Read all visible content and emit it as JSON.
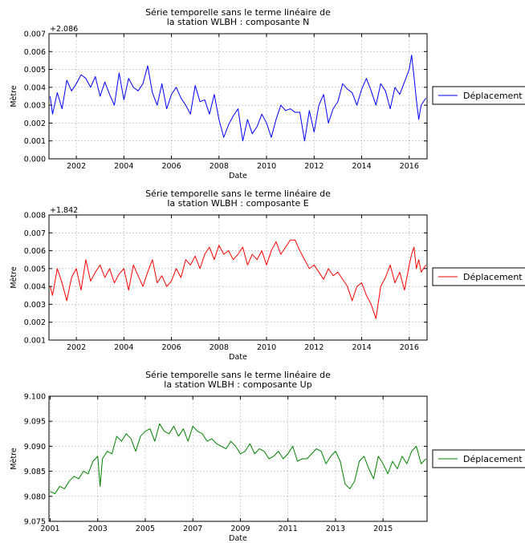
{
  "chart_data": [
    {
      "type": "line",
      "title_lines": [
        "Série temporelle sans le terme linéaire de",
        "la station WLBH : composante N"
      ],
      "xlabel": "Date",
      "ylabel": "Mètre",
      "offset_label": "+2.086",
      "x_unit": "decimal year",
      "xlim": [
        2000.85,
        2016.75
      ],
      "ylim": [
        0.0,
        0.007
      ],
      "xticks": [
        2002,
        2004,
        2006,
        2008,
        2010,
        2012,
        2014,
        2016
      ],
      "xtick_labels": [
        "2002",
        "2004",
        "2006",
        "2008",
        "2010",
        "2012",
        "2014",
        "2016"
      ],
      "yticks": [
        0.0,
        0.001,
        0.002,
        0.003,
        0.004,
        0.005,
        0.006,
        0.007
      ],
      "ytick_labels": [
        "0.000",
        "0.001",
        "0.002",
        "0.003",
        "0.004",
        "0.005",
        "0.006",
        "0.007"
      ],
      "grid": true,
      "legend_position": "right",
      "series": [
        {
          "name": "Déplacement",
          "color": "#0000ff",
          "x": [
            2000.9,
            2001.0,
            2001.2,
            2001.4,
            2001.6,
            2001.8,
            2002.0,
            2002.2,
            2002.4,
            2002.6,
            2002.8,
            2003.0,
            2003.2,
            2003.4,
            2003.6,
            2003.8,
            2004.0,
            2004.2,
            2004.4,
            2004.6,
            2004.8,
            2005.0,
            2005.2,
            2005.4,
            2005.6,
            2005.8,
            2006.0,
            2006.2,
            2006.4,
            2006.6,
            2006.8,
            2007.0,
            2007.2,
            2007.4,
            2007.6,
            2007.8,
            2008.0,
            2008.2,
            2008.4,
            2008.6,
            2008.8,
            2009.0,
            2009.2,
            2009.4,
            2009.6,
            2009.8,
            2010.0,
            2010.2,
            2010.4,
            2010.6,
            2010.8,
            2011.0,
            2011.2,
            2011.4,
            2011.6,
            2011.8,
            2012.0,
            2012.2,
            2012.4,
            2012.6,
            2012.8,
            2013.0,
            2013.2,
            2013.4,
            2013.6,
            2013.8,
            2014.0,
            2014.2,
            2014.4,
            2014.6,
            2014.8,
            2015.0,
            2015.2,
            2015.4,
            2015.6,
            2015.8,
            2016.0,
            2016.1,
            2016.2,
            2016.3,
            2016.4,
            2016.5,
            2016.7
          ],
          "y": [
            0.0035,
            0.0025,
            0.0037,
            0.0028,
            0.0044,
            0.0038,
            0.0042,
            0.0047,
            0.0045,
            0.004,
            0.0046,
            0.0035,
            0.0043,
            0.0036,
            0.003,
            0.0048,
            0.0033,
            0.0045,
            0.004,
            0.0038,
            0.0042,
            0.0052,
            0.0037,
            0.003,
            0.0042,
            0.0028,
            0.0036,
            0.004,
            0.0034,
            0.003,
            0.0025,
            0.0041,
            0.0032,
            0.0033,
            0.0025,
            0.0036,
            0.0022,
            0.0012,
            0.0019,
            0.0024,
            0.0028,
            0.001,
            0.0022,
            0.0014,
            0.0018,
            0.0025,
            0.002,
            0.0012,
            0.0022,
            0.003,
            0.0027,
            0.0028,
            0.0026,
            0.0026,
            0.001,
            0.0027,
            0.0015,
            0.003,
            0.0036,
            0.002,
            0.0028,
            0.0032,
            0.0042,
            0.0039,
            0.0037,
            0.003,
            0.0039,
            0.0045,
            0.0038,
            0.003,
            0.0042,
            0.0038,
            0.0028,
            0.004,
            0.0036,
            0.0043,
            0.005,
            0.0058,
            0.0046,
            0.0033,
            0.0022,
            0.003,
            0.0034
          ]
        }
      ]
    },
    {
      "type": "line",
      "title_lines": [
        "Série temporelle sans le terme linéaire de",
        "la station WLBH : composante E"
      ],
      "xlabel": "Date",
      "ylabel": "Mètre",
      "offset_label": "+1.842",
      "x_unit": "decimal year",
      "xlim": [
        2000.85,
        2016.75
      ],
      "ylim": [
        0.001,
        0.008
      ],
      "xticks": [
        2002,
        2004,
        2006,
        2008,
        2010,
        2012,
        2014,
        2016
      ],
      "xtick_labels": [
        "2002",
        "2004",
        "2006",
        "2008",
        "2010",
        "2012",
        "2014",
        "2016"
      ],
      "yticks": [
        0.001,
        0.002,
        0.003,
        0.004,
        0.005,
        0.006,
        0.007,
        0.008
      ],
      "ytick_labels": [
        "0.001",
        "0.002",
        "0.003",
        "0.004",
        "0.005",
        "0.006",
        "0.007",
        "0.008"
      ],
      "grid": true,
      "legend_position": "right",
      "series": [
        {
          "name": "Déplacement",
          "color": "#ff0000",
          "x": [
            2000.9,
            2001.0,
            2001.2,
            2001.4,
            2001.6,
            2001.8,
            2002.0,
            2002.2,
            2002.4,
            2002.6,
            2002.8,
            2003.0,
            2003.2,
            2003.4,
            2003.6,
            2003.8,
            2004.0,
            2004.2,
            2004.4,
            2004.6,
            2004.8,
            2005.0,
            2005.2,
            2005.4,
            2005.6,
            2005.8,
            2006.0,
            2006.2,
            2006.4,
            2006.6,
            2006.8,
            2007.0,
            2007.2,
            2007.4,
            2007.6,
            2007.8,
            2008.0,
            2008.2,
            2008.4,
            2008.6,
            2008.8,
            2009.0,
            2009.2,
            2009.4,
            2009.6,
            2009.8,
            2010.0,
            2010.2,
            2010.4,
            2010.6,
            2010.8,
            2011.0,
            2011.2,
            2011.4,
            2011.6,
            2011.8,
            2012.0,
            2012.2,
            2012.4,
            2012.6,
            2012.8,
            2013.0,
            2013.2,
            2013.4,
            2013.6,
            2013.8,
            2014.0,
            2014.2,
            2014.4,
            2014.6,
            2014.8,
            2015.0,
            2015.2,
            2015.4,
            2015.6,
            2015.8,
            2016.0,
            2016.1,
            2016.2,
            2016.3,
            2016.4,
            2016.5,
            2016.7
          ],
          "y": [
            0.004,
            0.0035,
            0.005,
            0.0042,
            0.0032,
            0.0045,
            0.005,
            0.0038,
            0.0055,
            0.0043,
            0.0048,
            0.0052,
            0.0045,
            0.005,
            0.0042,
            0.0047,
            0.005,
            0.0038,
            0.0052,
            0.0046,
            0.004,
            0.0048,
            0.0055,
            0.0042,
            0.0046,
            0.004,
            0.0043,
            0.005,
            0.0045,
            0.0055,
            0.0052,
            0.0057,
            0.005,
            0.0058,
            0.0062,
            0.0055,
            0.0063,
            0.0058,
            0.006,
            0.0055,
            0.0058,
            0.0062,
            0.0052,
            0.0058,
            0.0055,
            0.006,
            0.0052,
            0.006,
            0.0065,
            0.0058,
            0.0062,
            0.0066,
            0.0066,
            0.006,
            0.0055,
            0.005,
            0.0052,
            0.0048,
            0.0044,
            0.005,
            0.0046,
            0.0048,
            0.0044,
            0.004,
            0.0032,
            0.004,
            0.0042,
            0.0035,
            0.003,
            0.0022,
            0.004,
            0.0045,
            0.0052,
            0.0042,
            0.0048,
            0.0038,
            0.0052,
            0.0058,
            0.0062,
            0.005,
            0.0055,
            0.0048,
            0.0052
          ]
        }
      ]
    },
    {
      "type": "line",
      "title_lines": [
        "Série temporelle sans le terme linéaire de",
        "la station WLBH : composante Up"
      ],
      "xlabel": "Date",
      "ylabel": "Mètre",
      "offset_label": "",
      "x_unit": "decimal year",
      "xlim": [
        2000.95,
        2016.85
      ],
      "ylim": [
        9.075,
        9.1
      ],
      "xticks": [
        2001,
        2003,
        2005,
        2007,
        2009,
        2011,
        2013,
        2015
      ],
      "xtick_labels": [
        "2001",
        "2003",
        "2005",
        "2007",
        "2009",
        "2011",
        "2013",
        "2015"
      ],
      "yticks": [
        9.075,
        9.08,
        9.085,
        9.09,
        9.095,
        9.1
      ],
      "ytick_labels": [
        "9.075",
        "9.080",
        "9.085",
        "9.090",
        "9.095",
        "9.100"
      ],
      "grid": true,
      "legend_position": "right",
      "series": [
        {
          "name": "Déplacement",
          "color": "#008000",
          "x": [
            2001.0,
            2001.2,
            2001.4,
            2001.6,
            2001.8,
            2002.0,
            2002.2,
            2002.4,
            2002.6,
            2002.8,
            2003.0,
            2003.1,
            2003.2,
            2003.4,
            2003.6,
            2003.8,
            2004.0,
            2004.2,
            2004.4,
            2004.6,
            2004.8,
            2005.0,
            2005.2,
            2005.4,
            2005.6,
            2005.8,
            2006.0,
            2006.2,
            2006.4,
            2006.6,
            2006.8,
            2007.0,
            2007.2,
            2007.4,
            2007.6,
            2007.8,
            2008.0,
            2008.2,
            2008.4,
            2008.6,
            2008.8,
            2009.0,
            2009.2,
            2009.4,
            2009.6,
            2009.8,
            2010.0,
            2010.2,
            2010.4,
            2010.6,
            2010.8,
            2011.0,
            2011.2,
            2011.4,
            2011.6,
            2011.8,
            2012.0,
            2012.2,
            2012.4,
            2012.6,
            2012.8,
            2013.0,
            2013.2,
            2013.4,
            2013.6,
            2013.8,
            2014.0,
            2014.2,
            2014.4,
            2014.6,
            2014.8,
            2015.0,
            2015.2,
            2015.4,
            2015.6,
            2015.8,
            2016.0,
            2016.2,
            2016.4,
            2016.6,
            2016.8
          ],
          "y": [
            9.081,
            9.0805,
            9.082,
            9.0815,
            9.083,
            9.084,
            9.0835,
            9.085,
            9.0845,
            9.087,
            9.088,
            9.082,
            9.0875,
            9.089,
            9.0885,
            9.092,
            9.091,
            9.0925,
            9.0915,
            9.089,
            9.092,
            9.093,
            9.0935,
            9.091,
            9.0945,
            9.093,
            9.0925,
            9.094,
            9.092,
            9.0935,
            9.091,
            9.094,
            9.093,
            9.0925,
            9.091,
            9.0915,
            9.0905,
            9.09,
            9.0895,
            9.091,
            9.09,
            9.0885,
            9.089,
            9.0905,
            9.0885,
            9.0895,
            9.089,
            9.0875,
            9.088,
            9.089,
            9.0875,
            9.0885,
            9.09,
            9.087,
            9.0875,
            9.0875,
            9.0885,
            9.0895,
            9.089,
            9.0865,
            9.088,
            9.089,
            9.087,
            9.0825,
            9.0815,
            9.083,
            9.087,
            9.088,
            9.0855,
            9.0835,
            9.088,
            9.0865,
            9.0845,
            9.087,
            9.0855,
            9.088,
            9.0865,
            9.089,
            9.09,
            9.0865,
            9.0875
          ]
        }
      ]
    }
  ]
}
